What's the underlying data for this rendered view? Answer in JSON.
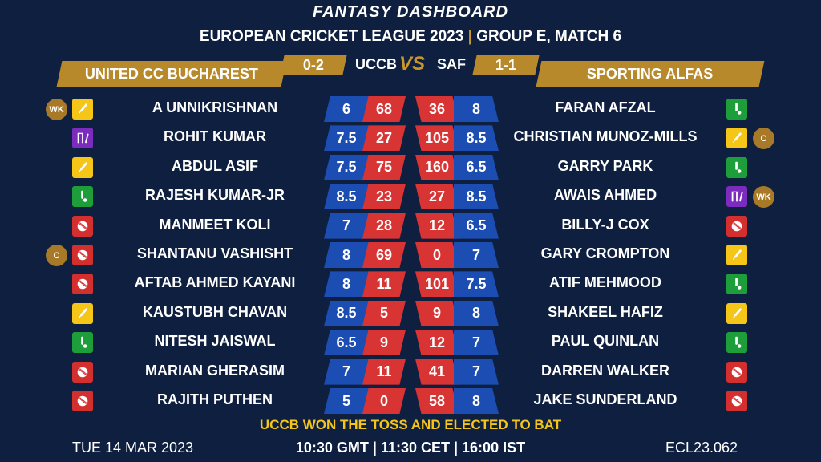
{
  "header": {
    "title": "FANTASY DASHBOARD",
    "subtitle_left": "EUROPEAN CRICKET LEAGUE 2023",
    "subtitle_sep": "|",
    "subtitle_right": "GROUP E, MATCH 6"
  },
  "teams": {
    "left": {
      "name": "UNITED CC BUCHAREST",
      "code": "UCCB",
      "record": "0-2"
    },
    "right": {
      "name": "SPORTING ALFAS",
      "code": "SAF",
      "record": "1-1"
    },
    "vs": "VS"
  },
  "colors": {
    "background": "#0f1f3f",
    "gold": "#b8892b",
    "blue_cell": "#1b4db3",
    "red_cell": "#d93434",
    "batter": "#f5c518",
    "bowler": "#d32f2f",
    "allrounder": "#1e9e3a",
    "keeper": "#7b2cbf"
  },
  "rows": [
    {
      "left": {
        "name": "A UNNIKRISHNAN",
        "role": "bat",
        "badge": "WK",
        "v1": "6",
        "v2": "68"
      },
      "right": {
        "name": "FARAN AFZAL",
        "role": "ar",
        "badge": "",
        "v1": "36",
        "v2": "8"
      }
    },
    {
      "left": {
        "name": "ROHIT KUMAR",
        "role": "wk",
        "badge": "",
        "v1": "7.5",
        "v2": "27"
      },
      "right": {
        "name": "CHRISTIAN MUNOZ-MILLS",
        "role": "bat",
        "badge": "C",
        "v1": "105",
        "v2": "8.5"
      }
    },
    {
      "left": {
        "name": "ABDUL ASIF",
        "role": "bat",
        "badge": "",
        "v1": "7.5",
        "v2": "75"
      },
      "right": {
        "name": "GARRY PARK",
        "role": "ar",
        "badge": "",
        "v1": "160",
        "v2": "6.5"
      }
    },
    {
      "left": {
        "name": "RAJESH KUMAR-JR",
        "role": "ar",
        "badge": "",
        "v1": "8.5",
        "v2": "23"
      },
      "right": {
        "name": "AWAIS AHMED",
        "role": "wk",
        "badge": "WK",
        "v1": "27",
        "v2": "8.5"
      }
    },
    {
      "left": {
        "name": "MANMEET KOLI",
        "role": "bowl",
        "badge": "",
        "v1": "7",
        "v2": "28"
      },
      "right": {
        "name": "BILLY-J COX",
        "role": "bowl",
        "badge": "",
        "v1": "12",
        "v2": "6.5"
      }
    },
    {
      "left": {
        "name": "SHANTANU VASHISHT",
        "role": "bowl",
        "badge": "C",
        "v1": "8",
        "v2": "69"
      },
      "right": {
        "name": "GARY CROMPTON",
        "role": "bat",
        "badge": "",
        "v1": "0",
        "v2": "7"
      }
    },
    {
      "left": {
        "name": "AFTAB AHMED KAYANI",
        "role": "bowl",
        "badge": "",
        "v1": "8",
        "v2": "11"
      },
      "right": {
        "name": "ATIF MEHMOOD",
        "role": "ar",
        "badge": "",
        "v1": "101",
        "v2": "7.5"
      }
    },
    {
      "left": {
        "name": "KAUSTUBH CHAVAN",
        "role": "bat",
        "badge": "",
        "v1": "8.5",
        "v2": "5"
      },
      "right": {
        "name": "SHAKEEL HAFIZ",
        "role": "bat",
        "badge": "",
        "v1": "9",
        "v2": "8"
      }
    },
    {
      "left": {
        "name": "NITESH JAISWAL",
        "role": "ar",
        "badge": "",
        "v1": "6.5",
        "v2": "9"
      },
      "right": {
        "name": "PAUL QUINLAN",
        "role": "ar",
        "badge": "",
        "v1": "12",
        "v2": "7"
      }
    },
    {
      "left": {
        "name": "MARIAN GHERASIM",
        "role": "bowl",
        "badge": "",
        "v1": "7",
        "v2": "11"
      },
      "right": {
        "name": "DARREN WALKER",
        "role": "bowl",
        "badge": "",
        "v1": "41",
        "v2": "7"
      }
    },
    {
      "left": {
        "name": "RAJITH PUTHEN",
        "role": "bowl",
        "badge": "",
        "v1": "5",
        "v2": "0"
      },
      "right": {
        "name": "JAKE SUNDERLAND",
        "role": "bowl",
        "badge": "",
        "v1": "58",
        "v2": "8"
      }
    }
  ],
  "footer": {
    "toss": "UCCB WON THE TOSS AND ELECTED TO BAT",
    "date": "TUE 14 MAR 2023",
    "times": "10:30 GMT | 11:30 CET | 16:00 IST",
    "match_code": "ECL23.062"
  }
}
